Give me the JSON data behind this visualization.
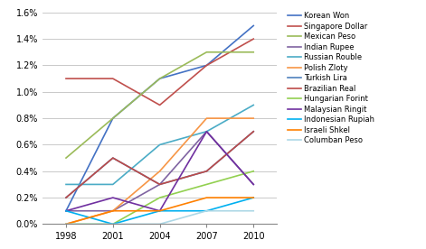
{
  "years": [
    1998,
    2001,
    2004,
    2007,
    2010
  ],
  "series": [
    {
      "name": "Korean Won",
      "color": "#4472C4",
      "values": [
        0.001,
        0.008,
        0.011,
        0.012,
        0.015
      ]
    },
    {
      "name": "Singapore Dollar",
      "color": "#C0504D",
      "values": [
        0.011,
        0.011,
        0.009,
        0.012,
        0.014
      ]
    },
    {
      "name": "Mexican Peso",
      "color": "#9BBB59",
      "values": [
        0.005,
        0.008,
        0.011,
        0.013,
        0.013
      ]
    },
    {
      "name": "Indian Rupee",
      "color": "#8064A2",
      "values": [
        0.001,
        0.001,
        0.003,
        0.007,
        0.003
      ]
    },
    {
      "name": "Russian Rouble",
      "color": "#4BACC6",
      "values": [
        0.003,
        0.003,
        0.006,
        0.007,
        0.009
      ]
    },
    {
      "name": "Polish Zloty",
      "color": "#F79646",
      "values": [
        0.0,
        0.001,
        0.004,
        0.008,
        0.008
      ]
    },
    {
      "name": "Turkish Lira",
      "color": "#4F81BD",
      "values": [
        0.002,
        0.005,
        0.003,
        0.004,
        0.007
      ]
    },
    {
      "name": "Brazilian Real",
      "color": "#BE4B48",
      "values": [
        0.002,
        0.005,
        0.003,
        0.004,
        0.007
      ]
    },
    {
      "name": "Hungarian Forint",
      "color": "#92D050",
      "values": [
        0.0,
        0.0,
        0.002,
        0.003,
        0.004
      ]
    },
    {
      "name": "Malaysian Ringit",
      "color": "#7030A0",
      "values": [
        0.001,
        0.002,
        0.001,
        0.007,
        0.003
      ]
    },
    {
      "name": "Indonesian Rupiah",
      "color": "#00B0F0",
      "values": [
        0.001,
        0.0,
        0.001,
        0.001,
        0.002
      ]
    },
    {
      "name": "Israeli Shkel",
      "color": "#FF8000",
      "values": [
        0.0,
        0.001,
        0.001,
        0.002,
        0.002
      ]
    },
    {
      "name": "Columban Peso",
      "color": "#ADD8E6",
      "values": [
        0.0,
        0.0,
        0.0,
        0.001,
        0.001
      ]
    }
  ],
  "ylim": [
    0.0,
    0.016
  ],
  "yticks": [
    0.0,
    0.002,
    0.004,
    0.006,
    0.008,
    0.01,
    0.012,
    0.014,
    0.016
  ],
  "ytick_labels": [
    "0.0%",
    "0.2%",
    "0.4%",
    "0.6%",
    "0.8%",
    "1.0%",
    "1.2%",
    "1.4%",
    "1.6%"
  ],
  "background_color": "#FFFFFF",
  "grid_color": "#C0C0C0"
}
